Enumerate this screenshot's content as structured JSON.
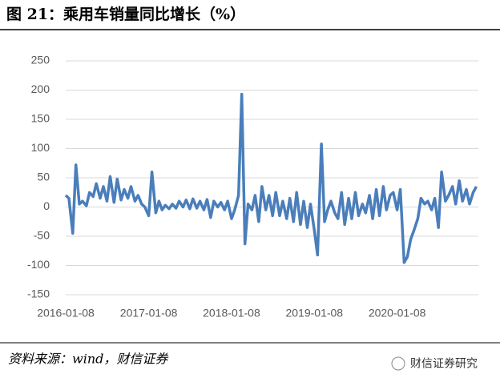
{
  "header": {
    "title": "图 21：乘用车销量同比增长（%）"
  },
  "chart_data": {
    "type": "line",
    "x": [
      "2016-01-08",
      "2016-01-22",
      "2016-02-08",
      "2016-02-22",
      "2016-03-08",
      "2016-03-22",
      "2016-04-08",
      "2016-04-22",
      "2016-05-08",
      "2016-05-22",
      "2016-06-08",
      "2016-06-22",
      "2016-07-08",
      "2016-07-22",
      "2016-08-08",
      "2016-08-22",
      "2016-09-08",
      "2016-09-22",
      "2016-10-08",
      "2016-10-22",
      "2016-11-08",
      "2016-11-22",
      "2016-12-08",
      "2016-12-22",
      "2017-01-08",
      "2017-01-22",
      "2017-02-08",
      "2017-02-22",
      "2017-03-08",
      "2017-03-22",
      "2017-04-08",
      "2017-04-22",
      "2017-05-08",
      "2017-05-22",
      "2017-06-08",
      "2017-06-22",
      "2017-07-08",
      "2017-07-22",
      "2017-08-08",
      "2017-08-22",
      "2017-09-08",
      "2017-09-22",
      "2017-10-08",
      "2017-10-22",
      "2017-11-08",
      "2017-11-22",
      "2017-12-08",
      "2017-12-22",
      "2018-01-08",
      "2018-01-22",
      "2018-02-08",
      "2018-02-22",
      "2018-03-08",
      "2018-03-22",
      "2018-04-08",
      "2018-04-22",
      "2018-05-08",
      "2018-05-22",
      "2018-06-08",
      "2018-06-22",
      "2018-07-08",
      "2018-07-22",
      "2018-08-08",
      "2018-08-22",
      "2018-09-08",
      "2018-09-22",
      "2018-10-08",
      "2018-10-22",
      "2018-11-08",
      "2018-11-22",
      "2018-12-08",
      "2018-12-22",
      "2019-01-08",
      "2019-01-22",
      "2019-02-08",
      "2019-02-22",
      "2019-03-08",
      "2019-03-22",
      "2019-04-08",
      "2019-04-22",
      "2019-05-08",
      "2019-05-22",
      "2019-06-08",
      "2019-06-22",
      "2019-07-08",
      "2019-07-22",
      "2019-08-08",
      "2019-08-22",
      "2019-09-08",
      "2019-09-22",
      "2019-10-08",
      "2019-10-22",
      "2019-11-08",
      "2019-11-22",
      "2019-12-08",
      "2019-12-22",
      "2020-01-08",
      "2020-01-22",
      "2020-02-08",
      "2020-02-22",
      "2020-03-08",
      "2020-03-22",
      "2020-04-08",
      "2020-04-22",
      "2020-05-08",
      "2020-05-22",
      "2020-06-08",
      "2020-06-22",
      "2020-07-08",
      "2020-07-22",
      "2020-08-08",
      "2020-08-22",
      "2020-09-08",
      "2020-09-22",
      "2020-10-08",
      "2020-10-22",
      "2020-11-08",
      "2020-11-22",
      "2020-12-08",
      "2020-12-22"
    ],
    "series": [
      {
        "color": "#4a7ebb",
        "values": [
          20,
          15,
          -45,
          72,
          5,
          10,
          2,
          25,
          18,
          40,
          15,
          35,
          10,
          52,
          8,
          48,
          12,
          30,
          15,
          35,
          10,
          20,
          5,
          0,
          -15,
          60,
          -10,
          10,
          -5,
          3,
          -3,
          5,
          -2,
          10,
          0,
          12,
          -3,
          14,
          -2,
          10,
          -5,
          13,
          -18,
          10,
          0,
          8,
          -5,
          10,
          -20,
          -5,
          20,
          193,
          -63,
          5,
          -5,
          20,
          -25,
          35,
          -5,
          20,
          -15,
          25,
          -15,
          10,
          -20,
          15,
          -25,
          25,
          -30,
          10,
          -35,
          5,
          -40,
          -82,
          108,
          -25,
          -5,
          10,
          -10,
          -20,
          25,
          -30,
          15,
          -20,
          25,
          -15,
          5,
          -10,
          20,
          -20,
          30,
          -15,
          35,
          -5,
          20,
          25,
          -5,
          30,
          -95,
          -85,
          -55,
          -40,
          -20,
          15,
          5,
          10,
          -5,
          15,
          -35,
          60,
          10,
          20,
          35,
          5,
          45,
          10,
          30,
          5,
          25,
          35
        ]
      }
    ],
    "xlim": [
      "2016-01-08",
      "2020-12-31"
    ],
    "xticks": [
      "2016-01-08",
      "2017-01-08",
      "2018-01-08",
      "2019-01-08",
      "2020-01-08"
    ],
    "ylim": [
      -150,
      250
    ],
    "yticks": [
      -150,
      -100,
      -50,
      0,
      50,
      100,
      150,
      200,
      250
    ],
    "grid": true
  },
  "footer": {
    "source": "资料来源：wind，财信证券",
    "watermark": "财信证券研究"
  }
}
